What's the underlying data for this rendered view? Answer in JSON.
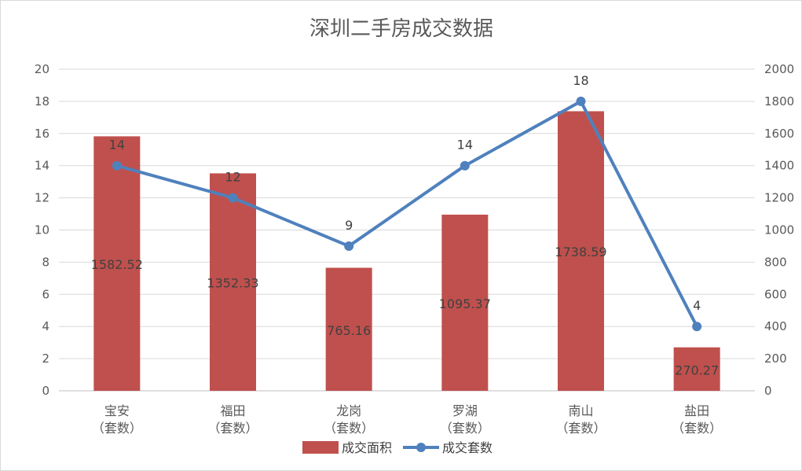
{
  "chart_data": {
    "type": "bar",
    "title": "深圳二手房成交数据",
    "categories": [
      [
        "宝安",
        "（套数）"
      ],
      [
        "福田",
        "（套数）"
      ],
      [
        "龙岗",
        "（套数）"
      ],
      [
        "罗湖",
        "（套数）"
      ],
      [
        "南山",
        "（套数）"
      ],
      [
        "盐田",
        "（套数）"
      ]
    ],
    "left_axis": {
      "ylim": [
        0,
        20
      ],
      "ticks": [
        "0",
        "2",
        "4",
        "6",
        "8",
        "10",
        "12",
        "14",
        "16",
        "18",
        "20"
      ]
    },
    "right_axis": {
      "ylim": [
        0,
        2000
      ],
      "ticks": [
        "0",
        "200",
        "400",
        "600",
        "800",
        "1000",
        "1200",
        "1400",
        "1600",
        "1800",
        "2000"
      ]
    },
    "grid": true,
    "legend_position": "bottom",
    "series": [
      {
        "name": "成交面积",
        "type": "bar",
        "axis": "right",
        "color": "#c0504d",
        "values": [
          1582.52,
          1352.33,
          765.16,
          1095.37,
          1738.59,
          270.27
        ],
        "labels": [
          "1582.52",
          "1352.33",
          "765.16",
          "1095.37",
          "1738.59",
          "270.27"
        ]
      },
      {
        "name": "成交套数",
        "type": "line",
        "axis": "left",
        "color": "#4f81bd",
        "values": [
          14,
          12,
          9,
          14,
          18,
          4
        ],
        "labels": [
          "14",
          "12",
          "9",
          "14",
          "18",
          "4"
        ]
      }
    ]
  }
}
